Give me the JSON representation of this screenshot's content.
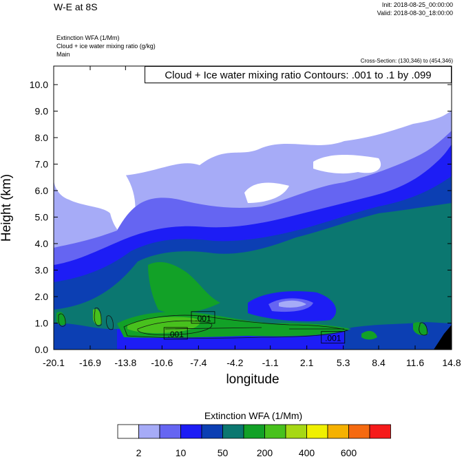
{
  "header": {
    "title": "W-E at 8S",
    "init": "Init: 2018-08-25_00:00:00",
    "valid": "Valid: 2018-08-30_18:00:00",
    "subtitles": [
      "Extinction WFA   (1/Mm)",
      "Cloud + ice water mixing ratio   (g/kg)",
      "Main"
    ],
    "cross_section": "Cross-Section: (130,346) to (454,346)"
  },
  "chart_data": {
    "type": "heatmap",
    "title": "W-E at 8S",
    "xlabel": "longitude",
    "ylabel": "Height (km)",
    "xlim": [
      -20.1,
      14.8
    ],
    "ylim": [
      0.0,
      10.7
    ],
    "x_ticks": [
      "-20.1",
      "-16.9",
      "-13.8",
      "-10.6",
      "-7.4",
      "-4.2",
      "-1.1",
      "2.1",
      "5.3",
      "8.4",
      "11.6",
      "14.8"
    ],
    "y_ticks": [
      "0.0",
      "1.0",
      "2.0",
      "3.0",
      "4.0",
      "5.0",
      "6.0",
      "7.0",
      "8.0",
      "9.0",
      "10.0"
    ],
    "contour_annotation": "Cloud + Ice water mixing ratio Contours: .001 to .1 by .099",
    "contour_labels": [
      {
        "text": ".001",
        "x": -7.0,
        "y": 1.2
      },
      {
        "text": ".001",
        "x": -9.4,
        "y": 0.6
      },
      {
        "text": ".001",
        "x": 4.4,
        "y": 0.45
      }
    ],
    "colorbar": {
      "title": "Extinction WFA  (1/Mm)",
      "tick_labels": [
        "2",
        "10",
        "50",
        "200",
        "400",
        "600"
      ],
      "colors": [
        "#ffffff",
        "#a6abf7",
        "#6565f2",
        "#1d1df5",
        "#0c3fb3",
        "#0b7770",
        "#12a127",
        "#48c11d",
        "#a6d814",
        "#f0f000",
        "#f5b100",
        "#f56a10",
        "#f51a1a"
      ]
    }
  }
}
